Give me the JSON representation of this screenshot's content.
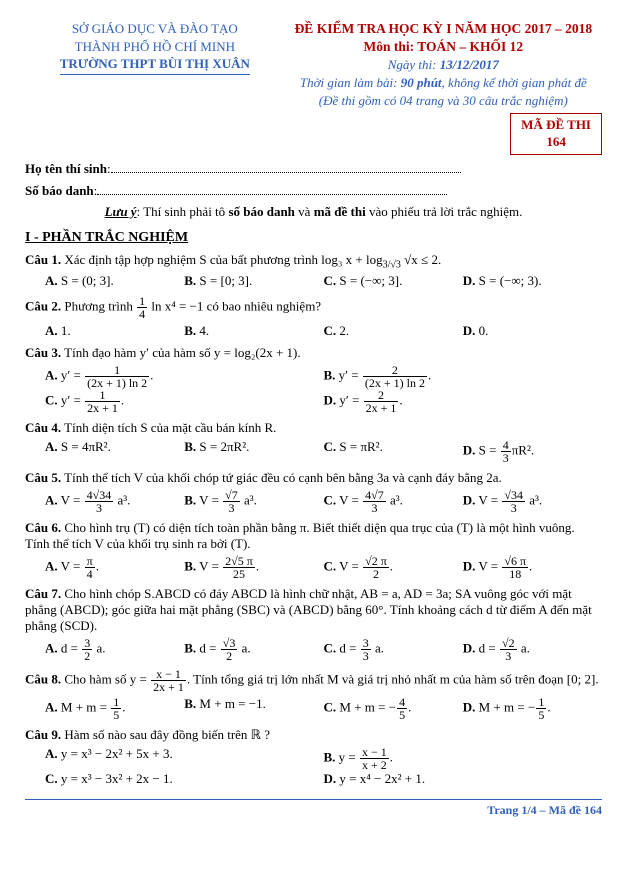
{
  "header": {
    "left_line1": "SỞ GIÁO DỤC VÀ ĐÀO TẠO",
    "left_line2": "THÀNH PHỐ HỒ CHÍ MINH",
    "school": "TRƯỜNG THPT BÙI THỊ XUÂN",
    "title1": "ĐỀ KIỂM TRA HỌC KỲ I NĂM HỌC 2017 – 2018",
    "title2": "Môn thi: TOÁN – KHỐI 12",
    "date_label": "Ngày thi: ",
    "date_value": "13/12/2017",
    "time_prefix": "Thời gian làm bài: ",
    "time_bold": "90 phút",
    "time_suffix": ", không kể thời gian phát đề",
    "note_paren": "(Đề thi gồm có 04 trang và 30 câu trắc nghiệm)"
  },
  "badge": {
    "label": "MÃ ĐỀ THI",
    "code": "164"
  },
  "candidate": {
    "name_label": "Họ tên thí sinh",
    "id_label": "Số báo danh"
  },
  "note_line": {
    "u": "Lưu ý",
    "prefix": ": Thí sinh phải tô ",
    "b1": "số báo danh",
    "mid": " và ",
    "b2": "mã đề thi",
    "suffix": " vào phiếu trả lời trắc nghiệm."
  },
  "section1": "I - PHẦN TRẮC NGHIỆM",
  "q1": {
    "label": "Câu 1.",
    "text": " Xác định tập hợp nghiệm S của bất phương trình log₃ x + log",
    "after": "√x ≤ 2.",
    "A": "S = (0; 3].",
    "B": "S = [0; 3].",
    "C": "S = (−∞; 3].",
    "D": "S = (−∞; 3)."
  },
  "q2": {
    "label": "Câu 2.",
    "prefix": " Phương trình ",
    "suffix": " ln x⁴ = −1 có bao nhiêu nghiệm?",
    "A": "1.",
    "B": "4.",
    "C": "2.",
    "D": "0."
  },
  "q3": {
    "label": "Câu 3.",
    "text": " Tính đạo hàm y′ của hàm số y = log₂(2x + 1).",
    "A_den": "(2x + 1) ln 2",
    "B_den": "(2x + 1) ln 2",
    "C_den": "2x + 1",
    "D_den": "2x + 1"
  },
  "q4": {
    "label": "Câu 4.",
    "text": " Tính diện tích S của mặt cầu bán kính R.",
    "A": "S = 4πR².",
    "B": "S = 2πR².",
    "C": "S = πR².",
    "D_pre": "S = ",
    "D_suf": "πR²."
  },
  "q5": {
    "label": "Câu 5.",
    "text": " Tính thể tích V của khối chóp tứ giác đều có cạnh bên bằng 3a và cạnh đáy bằng 2a."
  },
  "q6": {
    "label": "Câu 6.",
    "text": " Cho hình trụ (T) có diện tích toàn phần bằng π. Biết thiết diện qua trục của (T) là một hình vuông. Tính thể tích V của khối trụ sinh ra bởi (T)."
  },
  "q7": {
    "label": "Câu 7.",
    "text": " Cho hình chóp S.ABCD có đáy ABCD là hình chữ nhật, AB = a, AD = 3a; SA vuông góc với mặt phẳng (ABCD); góc giữa hai mặt phẳng (SBC) và (ABCD) bằng 60°. Tính khoảng cách d từ điểm A đến mặt phẳng (SCD)."
  },
  "q8": {
    "label": "Câu 8.",
    "prefix": " Cho hàm số y = ",
    "suffix": ". Tính tổng giá trị lớn nhất M và giá trị nhỏ nhất m của hàm số trên đoạn [0; 2].",
    "A_pre": "M + m = ",
    "B": "M + m = −1.",
    "C_pre": "M + m = −",
    "D_pre": "M + m = −"
  },
  "q9": {
    "label": "Câu 9.",
    "text": " Hàm số nào sau đây đồng biến trên ℝ ?",
    "A": "y = x³ − 2x² + 5x + 3.",
    "C": "y = x³ − 3x² + 2x − 1.",
    "D": "y = x⁴ − 2x² + 1."
  },
  "footer": "Trang 1/4 – Mã đề 164",
  "colors": {
    "blue": "#3060b8",
    "red": "#b00000",
    "text": "#000000",
    "background": "#ffffff"
  },
  "typography": {
    "font_family": "Times New Roman",
    "base_size": 13
  }
}
